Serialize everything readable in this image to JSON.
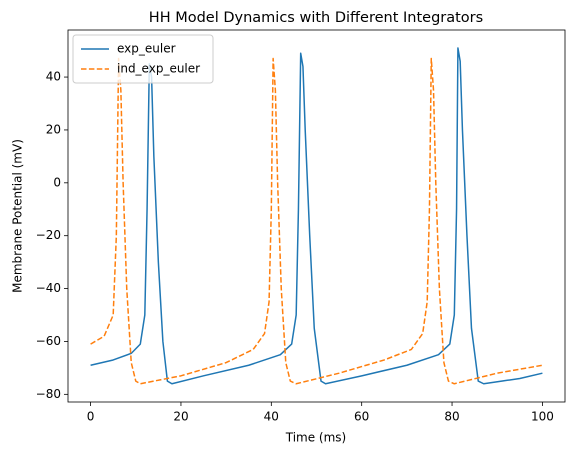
{
  "chart_data": {
    "type": "line",
    "title": "HH Model Dynamics with Different Integrators",
    "x_label": "Time (ms)",
    "y_label": "Membrane Potential (mV)",
    "xlim": [
      -5,
      105
    ],
    "ylim": [
      -82.9,
      57.8
    ],
    "xticks": [
      0,
      20,
      40,
      60,
      80,
      100
    ],
    "yticks": [
      {
        "value": -80,
        "label": "−80"
      },
      {
        "value": -60,
        "label": "−60"
      },
      {
        "value": -40,
        "label": "−40"
      },
      {
        "value": -20,
        "label": "−20"
      },
      0,
      20,
      40
    ],
    "legend": "upper-left",
    "series": [
      {
        "name": "exp_euler",
        "color": "#1f77b4",
        "dashed": false,
        "x": [
          0,
          5,
          9,
          11,
          12,
          12.5,
          13,
          13.5,
          14,
          15,
          16,
          17,
          18,
          25,
          35,
          42,
          44.5,
          45.5,
          46,
          46.5,
          47,
          47.5,
          48.5,
          49.5,
          51,
          52,
          60,
          70,
          77,
          79.5,
          80.5,
          81,
          81.3,
          81.8,
          82.3,
          83.3,
          84.3,
          85.8,
          87,
          95,
          100
        ],
        "values": [
          -69,
          -67,
          -64.5,
          -61,
          -50,
          -10,
          45,
          40,
          10,
          -30,
          -60,
          -75,
          -76,
          -73,
          -69,
          -65,
          -61,
          -50,
          -10,
          49,
          44,
          20,
          -20,
          -55,
          -75,
          -76,
          -73,
          -69,
          -65,
          -61,
          -50,
          -10,
          51,
          46,
          20,
          -20,
          -55,
          -75,
          -76,
          -74,
          -72
        ]
      },
      {
        "name": "ind_exp_euler",
        "color": "#ff7f0e",
        "dashed": true,
        "x": [
          0,
          3,
          5,
          5.7,
          6.2,
          6.7,
          7.2,
          8,
          9,
          10,
          11,
          20,
          30,
          36,
          38.5,
          39.5,
          40,
          40.4,
          40.9,
          41.4,
          42.2,
          43.2,
          44.2,
          45.5,
          55,
          65,
          71,
          73.5,
          74.5,
          75,
          75.4,
          75.9,
          76.4,
          77.2,
          78.2,
          79.2,
          80.5,
          90,
          100
        ],
        "values": [
          -61,
          -58,
          -50,
          -20,
          47,
          35,
          0,
          -40,
          -68,
          -75,
          -76,
          -73,
          -68,
          -63,
          -57,
          -45,
          -10,
          47,
          35,
          0,
          -40,
          -68,
          -75,
          -76,
          -72,
          -67,
          -63,
          -57,
          -45,
          -10,
          47,
          35,
          0,
          -40,
          -68,
          -75,
          -76,
          -72,
          -69
        ]
      }
    ]
  }
}
